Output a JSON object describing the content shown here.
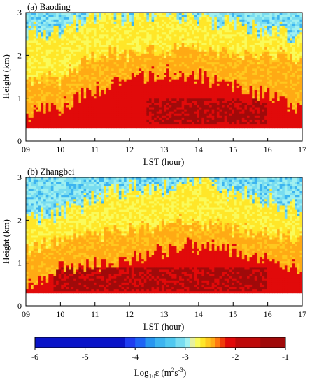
{
  "colors": {
    "palette": [
      "#0a14c8",
      "#1e3cf0",
      "#1e64f5",
      "#2896f0",
      "#3cb4f0",
      "#50c8f0",
      "#78dcf0",
      "#a0f0f0",
      "#e6f0a0",
      "#fafa5a",
      "#ffe628",
      "#ffc81e",
      "#ffaa14",
      "#ff780f",
      "#f03c0a",
      "#e10a0a",
      "#be0a0a",
      "#a00a0a"
    ],
    "palette_edges": [
      -6,
      -4.2,
      -4.0,
      -3.8,
      -3.6,
      -3.4,
      -3.2,
      -3.0,
      -2.9,
      -2.8,
      -2.7,
      -2.6,
      -2.5,
      -2.4,
      -2.3,
      -2.2,
      -2.0,
      -1.5,
      -1.0
    ]
  },
  "chart_data": [
    {
      "type": "heatmap",
      "panel_label": "(a) Baoding",
      "xlabel": "LST (hour)",
      "ylabel": "Height (km)",
      "xlim": [
        9,
        17
      ],
      "ylim": [
        0,
        3
      ],
      "x_ticks": [
        "09",
        "10",
        "11",
        "12",
        "13",
        "14",
        "15",
        "16",
        "17"
      ],
      "y_ticks": [
        "0",
        "1",
        "2",
        "3"
      ],
      "data_min_height_km": 0.3,
      "profile": {
        "x": [
          9,
          10,
          11,
          12,
          13,
          14,
          15,
          16,
          17
        ],
        "red_top_km": [
          0.7,
          0.75,
          1.2,
          1.5,
          1.55,
          1.5,
          1.3,
          1.1,
          0.7
        ],
        "orange_top_km": [
          1.5,
          1.55,
          2.0,
          2.1,
          2.1,
          2.2,
          2.0,
          2.0,
          1.9
        ],
        "yellow_top_km": [
          2.5,
          2.6,
          2.9,
          3.0,
          3.0,
          2.9,
          2.7,
          2.6,
          2.4
        ],
        "darkred_band_km": [
          0.4,
          1.0
        ],
        "darkred_x_range": [
          12.5,
          16
        ]
      }
    },
    {
      "type": "heatmap",
      "panel_label": "(b) Zhangbei",
      "xlabel": "LST (hour)",
      "ylabel": "Height (km)",
      "xlim": [
        9,
        17
      ],
      "ylim": [
        0,
        3
      ],
      "x_ticks": [
        "09",
        "10",
        "11",
        "12",
        "13",
        "14",
        "15",
        "16",
        "17"
      ],
      "y_ticks": [
        "0",
        "1",
        "2",
        "3"
      ],
      "data_min_height_km": 0.3,
      "profile": {
        "x": [
          9,
          10,
          11,
          12,
          13,
          14,
          15,
          16,
          17
        ],
        "red_top_km": [
          0.5,
          0.9,
          1.0,
          1.1,
          1.3,
          1.4,
          1.3,
          1.1,
          0.8
        ],
        "orange_top_km": [
          1.3,
          1.5,
          1.7,
          1.8,
          1.9,
          2.0,
          1.8,
          1.7,
          1.5
        ],
        "yellow_top_km": [
          2.0,
          2.2,
          2.5,
          2.7,
          2.8,
          3.0,
          2.7,
          2.5,
          2.2
        ],
        "darkred_band_km": [
          0.35,
          0.9
        ],
        "darkred_x_range": [
          9.8,
          16
        ]
      }
    }
  ],
  "colorbar": {
    "label_main": "Log",
    "label_sub": "10",
    "label_rest": "ε (m",
    "label_sup1": "2",
    "label_mid": "s",
    "label_sup2": "-3",
    "label_end": ")",
    "ticks": [
      "-6",
      "-5",
      "-4",
      "-3",
      "-2",
      "-1"
    ],
    "range": [
      -6,
      -1
    ]
  }
}
